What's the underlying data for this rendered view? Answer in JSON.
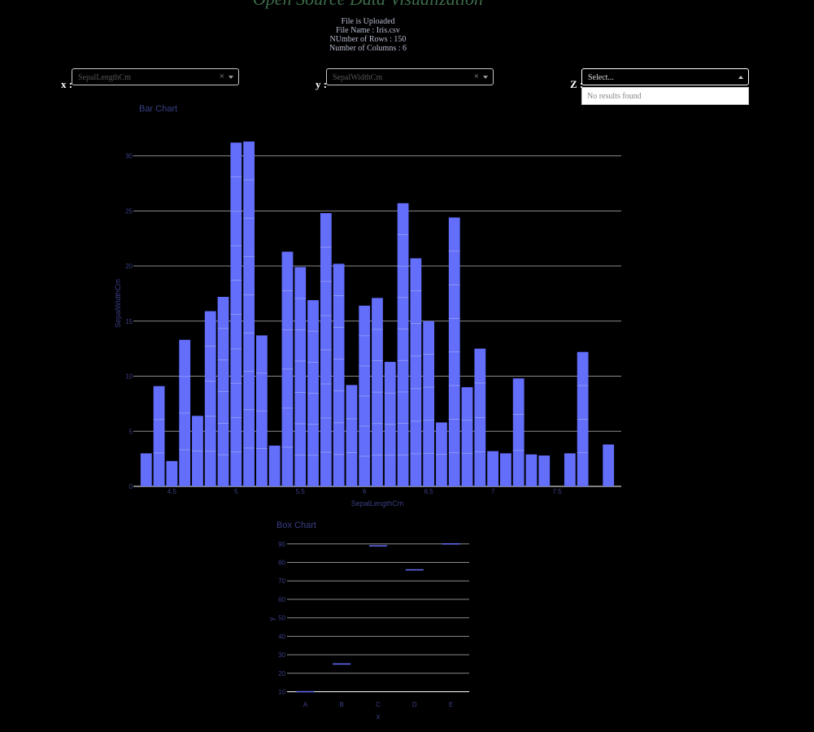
{
  "header": {
    "title": "Open Source Data Visualization",
    "status": "File is Uploaded",
    "file_name": "File Name : Iris.csv",
    "rows": "NUmber of Rows : 150",
    "columns": "Number of Columns : 6"
  },
  "controls": {
    "x_label": "x :",
    "y_label": "y :",
    "z_label": "Z :",
    "x_value": "SepalLengthCm",
    "y_value": "SepalWidthCm",
    "z_placeholder": "Select...",
    "z_empty": "No results found",
    "clear_symbol": "×"
  },
  "chart_data": [
    {
      "type": "bar",
      "title": "Bar Chart",
      "xlabel": "SepalLengthCm",
      "ylabel": "SepalWidthCm",
      "x": [
        4.3,
        4.4,
        4.5,
        4.6,
        4.7,
        4.8,
        4.9,
        5.0,
        5.1,
        5.2,
        5.3,
        5.4,
        5.5,
        5.6,
        5.7,
        5.8,
        5.9,
        6.0,
        6.1,
        6.2,
        6.3,
        6.4,
        6.5,
        6.6,
        6.7,
        6.8,
        6.9,
        7.0,
        7.1,
        7.2,
        7.3,
        7.4,
        7.6,
        7.7,
        7.9
      ],
      "values": [
        3.0,
        9.1,
        2.3,
        13.3,
        6.4,
        15.9,
        17.2,
        31.2,
        31.3,
        13.7,
        3.7,
        21.3,
        19.9,
        16.9,
        24.8,
        20.2,
        9.2,
        16.4,
        17.1,
        11.3,
        25.7,
        20.7,
        15.0,
        5.8,
        24.4,
        9.0,
        12.5,
        3.2,
        3.0,
        9.8,
        2.9,
        2.8,
        3.0,
        12.2,
        3.8
      ],
      "stacks": [
        1,
        3,
        1,
        4,
        2,
        5,
        6,
        10,
        9,
        4,
        1,
        6,
        7,
        6,
        8,
        7,
        3,
        6,
        6,
        4,
        9,
        7,
        5,
        2,
        8,
        3,
        4,
        1,
        1,
        3,
        1,
        1,
        1,
        4,
        1
      ],
      "xticks": [
        "4.5",
        "5",
        "5.5",
        "6",
        "6.5",
        "7",
        "7.5"
      ],
      "xtick_values": [
        4.5,
        5,
        5.5,
        6,
        6.5,
        7,
        7.5
      ],
      "yticks": [
        "0",
        "5",
        "10",
        "15",
        "20",
        "25",
        "30"
      ],
      "ytick_values": [
        0,
        5,
        10,
        15,
        20,
        25,
        30
      ],
      "xlim": [
        4.2,
        8.0
      ],
      "ylim": [
        0,
        32.7
      ],
      "grid": true,
      "color": "#636efa"
    },
    {
      "type": "box",
      "title": "Box Chart",
      "xlabel": "x",
      "ylabel": "y",
      "categories": [
        "A",
        "B",
        "C",
        "D",
        "E"
      ],
      "values": [
        10,
        25,
        89,
        76,
        90
      ],
      "yticks": [
        "10",
        "20",
        "30",
        "40",
        "50",
        "60",
        "70",
        "80",
        "90"
      ],
      "ytick_values": [
        10,
        20,
        30,
        40,
        50,
        60,
        70,
        80,
        90
      ],
      "ylim": [
        8,
        93
      ],
      "grid": true,
      "color": "#636efa"
    }
  ]
}
